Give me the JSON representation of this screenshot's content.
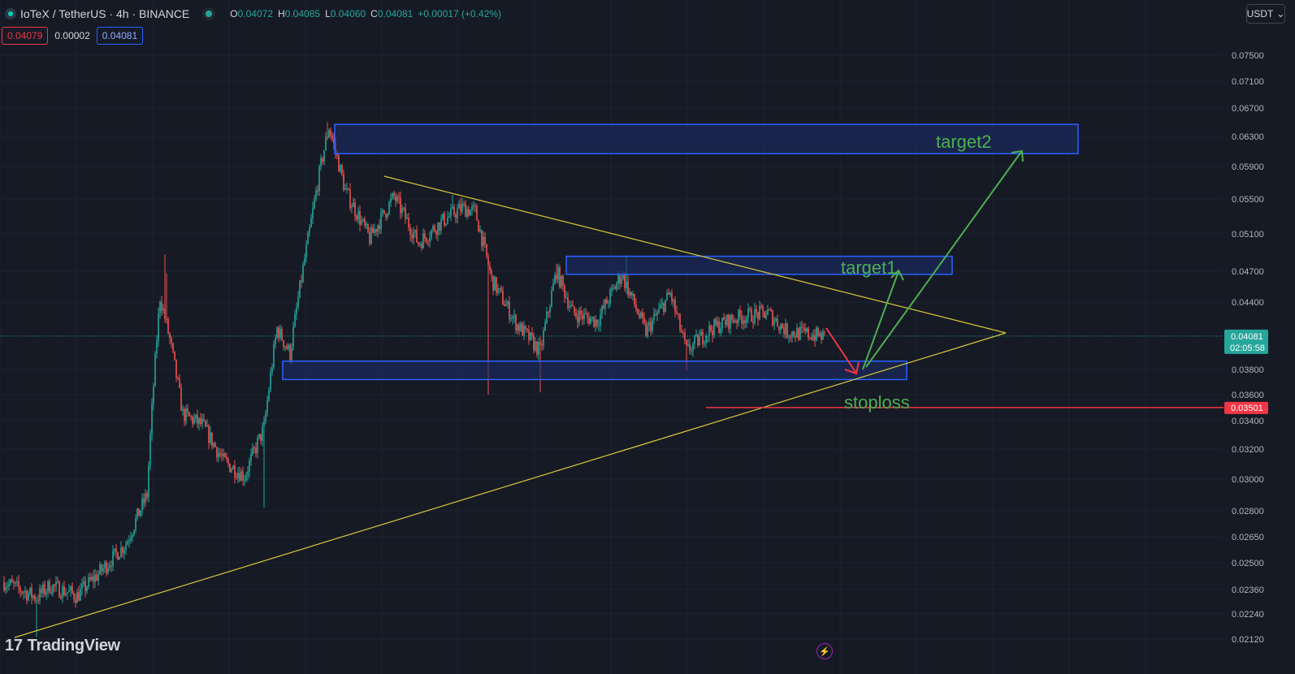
{
  "header": {
    "symbol": "IoTeX / TetherUS · 4h · BINANCE",
    "o_key": "O",
    "o": "0.04072",
    "h_key": "H",
    "h": "0.04085",
    "l_key": "L",
    "l": "0.04060",
    "c_key": "C",
    "c": "0.04081",
    "change": "+0.00017 (+0.42%)"
  },
  "quote": {
    "bid": "0.04079",
    "spread": "0.00002",
    "ask": "0.04081"
  },
  "currency": {
    "label": "USDT",
    "chevron": "chevron-down-icon"
  },
  "brand": {
    "mark": "17",
    "name": "TradingView"
  },
  "bolt_icon": "lightning-icon",
  "colors": {
    "background": "#161a25",
    "up": "#26a69a",
    "down": "#ef5350",
    "trendline": "#d8c93a",
    "zone_fill": "#1c2d6e",
    "zone_border": "#2962ff",
    "arrow_green": "#4caf50",
    "arrow_red": "#f23645",
    "stop": "#f23645"
  },
  "chart_data": {
    "type": "candlestick",
    "y_ticks": [
      "0.07500",
      "0.07100",
      "0.06700",
      "0.06300",
      "0.05900",
      "0.05500",
      "0.05100",
      "0.04700",
      "0.04400",
      "0.03800",
      "0.03600",
      "0.03400",
      "0.03200",
      "0.03000",
      "0.02800",
      "0.02650",
      "0.02500",
      "0.02360",
      "0.02240",
      "0.02120"
    ],
    "last_price": {
      "value": "0.04081",
      "countdown": "02:05:58"
    },
    "stop_price": "0.03501",
    "labels": {
      "target1": "target1",
      "target2": "target2",
      "stoploss": "stoploss"
    },
    "zones": [
      {
        "name": "target2-zone",
        "low": 0.0607,
        "high": 0.0647
      },
      {
        "name": "target1-zone",
        "low": 0.0467,
        "high": 0.0486
      },
      {
        "name": "support-zone",
        "low": 0.0372,
        "high": 0.0387
      }
    ],
    "anchors": [
      {
        "i": 0,
        "p": 0.024
      },
      {
        "i": 20,
        "p": 0.0232
      },
      {
        "i": 28,
        "p": 0.0238
      },
      {
        "i": 45,
        "p": 0.0233
      },
      {
        "i": 60,
        "p": 0.0246
      },
      {
        "i": 75,
        "p": 0.0261
      },
      {
        "i": 88,
        "p": 0.029
      },
      {
        "i": 96,
        "p": 0.0445
      },
      {
        "i": 102,
        "p": 0.0405
      },
      {
        "i": 110,
        "p": 0.0345
      },
      {
        "i": 122,
        "p": 0.0337
      },
      {
        "i": 135,
        "p": 0.0312
      },
      {
        "i": 148,
        "p": 0.0302
      },
      {
        "i": 160,
        "p": 0.0335
      },
      {
        "i": 168,
        "p": 0.0415
      },
      {
        "i": 176,
        "p": 0.0393
      },
      {
        "i": 188,
        "p": 0.0513
      },
      {
        "i": 196,
        "p": 0.0603
      },
      {
        "i": 200,
        "p": 0.0643
      },
      {
        "i": 210,
        "p": 0.056
      },
      {
        "i": 225,
        "p": 0.0505
      },
      {
        "i": 240,
        "p": 0.0553
      },
      {
        "i": 255,
        "p": 0.05
      },
      {
        "i": 270,
        "p": 0.0525
      },
      {
        "i": 282,
        "p": 0.054
      },
      {
        "i": 290,
        "p": 0.0535
      },
      {
        "i": 300,
        "p": 0.0462
      },
      {
        "i": 315,
        "p": 0.042
      },
      {
        "i": 330,
        "p": 0.0395
      },
      {
        "i": 340,
        "p": 0.047
      },
      {
        "i": 350,
        "p": 0.043
      },
      {
        "i": 365,
        "p": 0.0422
      },
      {
        "i": 380,
        "p": 0.0467
      },
      {
        "i": 395,
        "p": 0.0412
      },
      {
        "i": 410,
        "p": 0.0448
      },
      {
        "i": 420,
        "p": 0.0395
      },
      {
        "i": 435,
        "p": 0.0415
      },
      {
        "i": 450,
        "p": 0.0425
      },
      {
        "i": 470,
        "p": 0.043
      },
      {
        "i": 482,
        "p": 0.0412
      },
      {
        "i": 495,
        "p": 0.041
      },
      {
        "i": 505,
        "p": 0.0408
      }
    ]
  }
}
